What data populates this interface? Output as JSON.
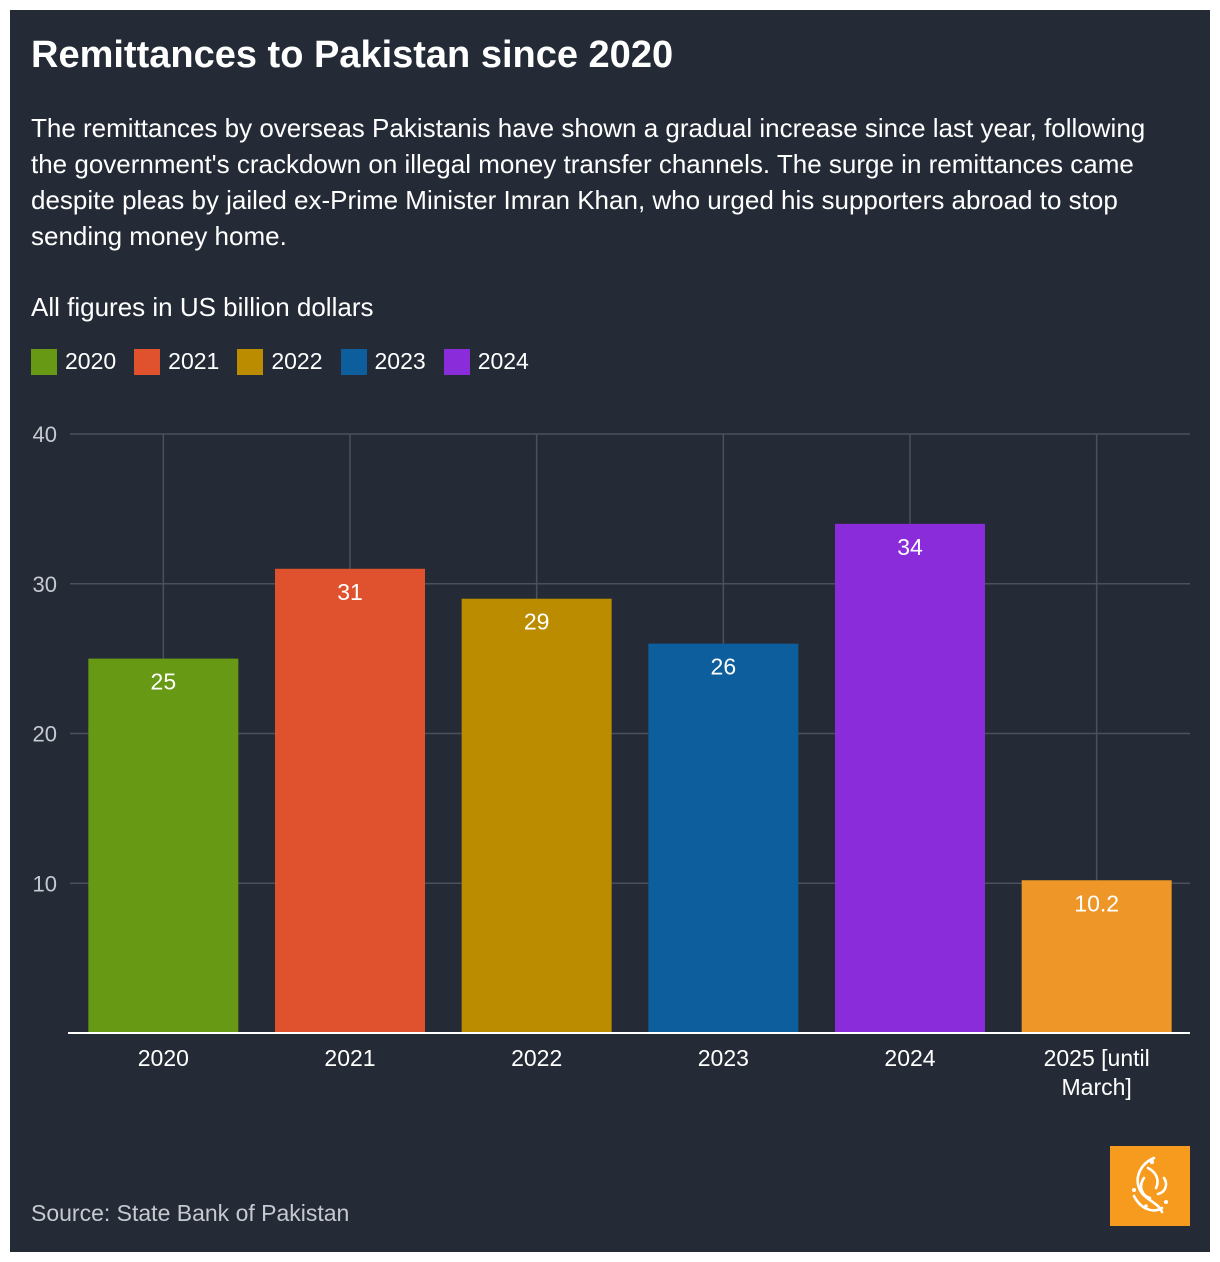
{
  "chart_data": {
    "type": "bar",
    "title": "Remittances to Pakistan since 2020",
    "subtitle": "The remittances by overseas Pakistanis have shown a gradual increase since last year, following the government's crackdown on illegal money transfer channels. The surge in remittances came despite pleas by jailed ex-Prime Minister Imran Khan, who urged his supporters abroad to stop sending money home.",
    "units_note": "All figures in US billion dollars",
    "categories": [
      "2020",
      "2021",
      "2022",
      "2023",
      "2024",
      "2025 [until March]"
    ],
    "values": [
      25,
      31,
      29,
      26,
      34,
      10.2
    ],
    "data_labels": [
      "25",
      "31",
      "29",
      "26",
      "34",
      "10.2"
    ],
    "bar_colors": [
      "#689915",
      "#e0522e",
      "#bb8b00",
      "#0d5e9c",
      "#8b2cdb",
      "#ee9728"
    ],
    "legend": [
      {
        "label": "2020",
        "color": "#689915"
      },
      {
        "label": "2021",
        "color": "#e0522e"
      },
      {
        "label": "2022",
        "color": "#bb8b00"
      },
      {
        "label": "2023",
        "color": "#0d5e9c"
      },
      {
        "label": "2024",
        "color": "#8b2cdb"
      }
    ],
    "yticks": [
      10,
      20,
      30,
      40
    ],
    "ylim": [
      0,
      40
    ],
    "xlabel": "",
    "ylabel": "",
    "grid": true,
    "legend_position": "top-left"
  },
  "footer": {
    "source": "Source: State Bank of Pakistan",
    "logo_name": "Al Jazeera"
  },
  "colors": {
    "background": "#252b36",
    "gridline": "#4a505c",
    "axis": "#ffffff",
    "logo": "#f79b1e"
  }
}
